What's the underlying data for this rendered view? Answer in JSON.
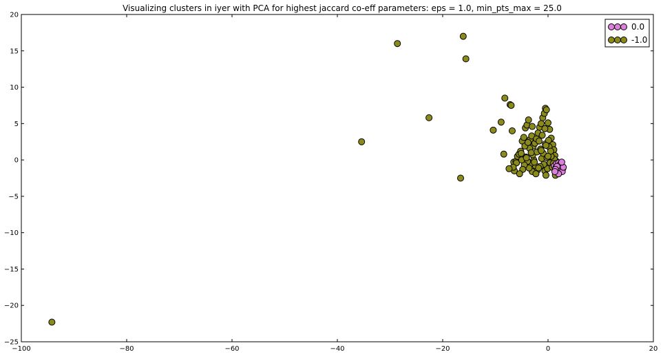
{
  "chart_data": {
    "type": "scatter",
    "title": "Visualizing clusters in iyer with PCA for highest jaccard co-eff parameters: eps = 1.0, min_pts_max = 25.0",
    "xlabel": "",
    "ylabel": "",
    "xlim": [
      -100,
      20
    ],
    "ylim": [
      -25,
      20
    ],
    "x_ticks": [
      "−100",
      "−80",
      "−60",
      "−40",
      "−20",
      "0",
      "20"
    ],
    "x_tick_values": [
      -100,
      -80,
      -60,
      -40,
      -20,
      0,
      20
    ],
    "y_ticks": [
      "−25",
      "−20",
      "−15",
      "−10",
      "−5",
      "0",
      "5",
      "10",
      "15",
      "20"
    ],
    "y_tick_values": [
      -25,
      -20,
      -15,
      -10,
      -5,
      0,
      5,
      10,
      15,
      20
    ],
    "grid": false,
    "legend_position": "top-right",
    "series": [
      {
        "name": "0.0",
        "color": "#dd80dd",
        "x": [
          1.2,
          1.6,
          2.0,
          2.3,
          2.6,
          2.8,
          2.5,
          2.1,
          1.8,
          1.5,
          1.9,
          2.4,
          2.7,
          2.2,
          1.7,
          1.4,
          2.9,
          2.6,
          2.0,
          1.3
        ],
        "y": [
          -0.8,
          -0.5,
          -0.4,
          -0.6,
          -0.9,
          -1.2,
          -1.5,
          -1.7,
          -1.4,
          -1.1,
          -1.0,
          -1.3,
          -1.6,
          -0.7,
          -0.9,
          -1.3,
          -1.0,
          -0.3,
          -1.9,
          -1.6
        ]
      },
      {
        "name": "-1.0",
        "color": "#8b8b1c",
        "x": [
          -94.2,
          -35.4,
          -28.6,
          -22.6,
          -16.6,
          -16.1,
          -15.6,
          -10.4,
          -8.9,
          -8.2,
          -8.4,
          -7.2,
          -7.0,
          -6.8,
          -6.5,
          -6.4,
          -6.1,
          -5.8,
          -5.5,
          -5.2,
          -4.9,
          -4.6,
          -4.3,
          -4.0,
          -3.7,
          -3.4,
          -3.1,
          -2.8,
          -2.5,
          -2.2,
          -1.9,
          -1.6,
          -1.3,
          -1.0,
          -0.7,
          -0.5,
          -0.3,
          0.0,
          0.3,
          0.6,
          0.9,
          1.1,
          1.3,
          1.6,
          -0.6,
          -0.4,
          -0.1,
          -0.8,
          -1.2,
          -1.5,
          -2.0,
          -2.4,
          -2.7,
          -3.0,
          -3.3,
          -3.6,
          -3.9,
          -4.2,
          -4.5,
          -4.8,
          -5.1,
          -5.4,
          -6.0,
          -6.6,
          -7.4,
          -3.5,
          -2.9,
          -2.1,
          -1.4,
          -0.9,
          -0.2,
          0.4,
          0.8,
          1.2,
          -4.4,
          -3.8,
          -3.2,
          -2.6,
          -1.7,
          -1.1,
          -0.5,
          0.2,
          0.6,
          1.0,
          -5.0,
          -4.1,
          -2.3,
          -1.8,
          -0.6,
          0.1,
          0.5,
          1.4,
          -3.0,
          -1.3,
          0.0,
          -0.4
        ],
        "y": [
          -22.3,
          2.5,
          16.0,
          5.8,
          -2.5,
          17.0,
          13.9,
          4.1,
          5.2,
          8.5,
          0.8,
          7.6,
          7.5,
          4.0,
          -0.3,
          -1.5,
          -0.2,
          0.5,
          0.8,
          1.2,
          2.6,
          3.1,
          4.4,
          4.8,
          5.5,
          2.8,
          3.3,
          1.9,
          2.3,
          2.9,
          3.7,
          4.5,
          5.0,
          5.8,
          6.4,
          7.1,
          6.9,
          5.1,
          4.2,
          3.0,
          2.1,
          1.4,
          0.6,
          -0.2,
          -1.5,
          -2.1,
          -1.2,
          -0.6,
          0.2,
          -0.9,
          -1.4,
          -0.8,
          0.0,
          -1.6,
          -0.5,
          -1.1,
          -0.2,
          0.4,
          -0.7,
          -1.3,
          0.9,
          -1.9,
          -0.4,
          -1.0,
          -1.2,
          1.6,
          0.7,
          1.1,
          1.5,
          0.9,
          0.3,
          -0.4,
          -1.0,
          0.1,
          1.9,
          2.4,
          1.0,
          -0.3,
          2.6,
          3.4,
          2.2,
          1.8,
          0.5,
          -0.5,
          0.0,
          0.3,
          -1.9,
          -1.1,
          4.3,
          2.7,
          1.2,
          -2.1,
          4.6,
          1.3,
          0.5,
          2.0
        ]
      }
    ]
  }
}
